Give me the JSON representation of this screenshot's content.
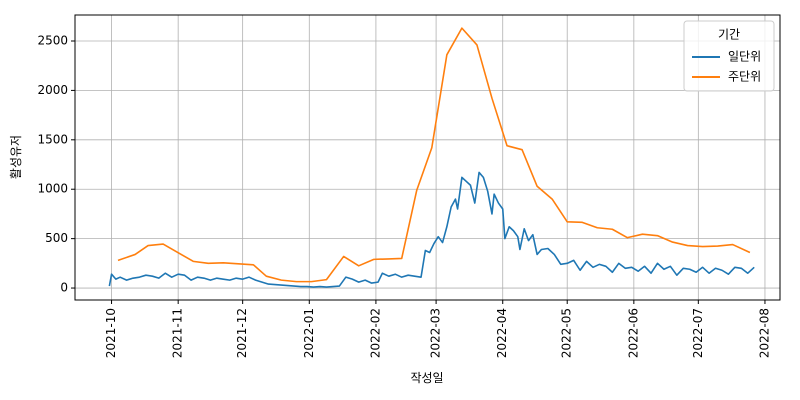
{
  "chart_data": {
    "type": "line",
    "x_label": "작성일",
    "y_label": "활성유저",
    "xlim": [
      "2021-09-14",
      "2022-08-08"
    ],
    "xticks": [
      {
        "value": "2021-10-01",
        "label": "2021-10"
      },
      {
        "value": "2021-11-01",
        "label": "2021-11"
      },
      {
        "value": "2021-12-01",
        "label": "2021-12"
      },
      {
        "value": "2022-01-01",
        "label": "2022-01"
      },
      {
        "value": "2022-02-01",
        "label": "2022-02"
      },
      {
        "value": "2022-03-01",
        "label": "2022-03"
      },
      {
        "value": "2022-04-01",
        "label": "2022-04"
      },
      {
        "value": "2022-05-01",
        "label": "2022-05"
      },
      {
        "value": "2022-06-01",
        "label": "2022-06"
      },
      {
        "value": "2022-07-01",
        "label": "2022-07"
      },
      {
        "value": "2022-08-01",
        "label": "2022-08"
      }
    ],
    "ylim": [
      -121,
      2763
    ],
    "yticks": [
      0,
      500,
      1000,
      1500,
      2000,
      2500
    ],
    "grid": true,
    "legend_title": "기간",
    "legend_position": "upper right",
    "series": [
      {
        "name": "일단위",
        "color": "#1f77b4",
        "x": [
          "2021-09-30",
          "2021-10-01",
          "2021-10-03",
          "2021-10-05",
          "2021-10-08",
          "2021-10-11",
          "2021-10-14",
          "2021-10-17",
          "2021-10-20",
          "2021-10-23",
          "2021-10-26",
          "2021-10-29",
          "2021-11-01",
          "2021-11-04",
          "2021-11-07",
          "2021-11-10",
          "2021-11-13",
          "2021-11-16",
          "2021-11-19",
          "2021-11-22",
          "2021-11-25",
          "2021-11-28",
          "2021-12-01",
          "2021-12-04",
          "2021-12-07",
          "2021-12-10",
          "2021-12-13",
          "2021-12-16",
          "2021-12-19",
          "2021-12-22",
          "2021-12-25",
          "2021-12-28",
          "2021-12-31",
          "2022-01-03",
          "2022-01-06",
          "2022-01-09",
          "2022-01-12",
          "2022-01-15",
          "2022-01-18",
          "2022-01-21",
          "2022-01-24",
          "2022-01-27",
          "2022-01-30",
          "2022-02-02",
          "2022-02-04",
          "2022-02-07",
          "2022-02-10",
          "2022-02-13",
          "2022-02-16",
          "2022-02-19",
          "2022-02-22",
          "2022-02-24",
          "2022-02-26",
          "2022-02-28",
          "2022-03-02",
          "2022-03-04",
          "2022-03-06",
          "2022-03-08",
          "2022-03-10",
          "2022-03-11",
          "2022-03-13",
          "2022-03-15",
          "2022-03-17",
          "2022-03-19",
          "2022-03-21",
          "2022-03-23",
          "2022-03-25",
          "2022-03-27",
          "2022-03-28",
          "2022-03-30",
          "2022-04-01",
          "2022-04-02",
          "2022-04-04",
          "2022-04-06",
          "2022-04-08",
          "2022-04-09",
          "2022-04-11",
          "2022-04-13",
          "2022-04-15",
          "2022-04-17",
          "2022-04-19",
          "2022-04-22",
          "2022-04-25",
          "2022-04-28",
          "2022-05-01",
          "2022-05-04",
          "2022-05-07",
          "2022-05-10",
          "2022-05-13",
          "2022-05-16",
          "2022-05-19",
          "2022-05-22",
          "2022-05-25",
          "2022-05-28",
          "2022-05-31",
          "2022-06-03",
          "2022-06-06",
          "2022-06-09",
          "2022-06-12",
          "2022-06-15",
          "2022-06-18",
          "2022-06-21",
          "2022-06-24",
          "2022-06-27",
          "2022-06-30",
          "2022-07-03",
          "2022-07-06",
          "2022-07-09",
          "2022-07-12",
          "2022-07-15",
          "2022-07-18",
          "2022-07-21",
          "2022-07-24",
          "2022-07-27"
        ],
        "values": [
          20,
          140,
          90,
          110,
          80,
          100,
          110,
          130,
          120,
          100,
          150,
          110,
          140,
          130,
          80,
          110,
          100,
          80,
          100,
          90,
          80,
          100,
          90,
          110,
          80,
          60,
          40,
          35,
          30,
          25,
          20,
          15,
          15,
          10,
          15,
          10,
          15,
          20,
          110,
          90,
          60,
          80,
          50,
          60,
          150,
          120,
          140,
          110,
          130,
          120,
          110,
          380,
          360,
          450,
          520,
          460,
          620,
          820,
          900,
          800,
          1120,
          1080,
          1040,
          860,
          1170,
          1120,
          980,
          750,
          950,
          860,
          800,
          500,
          620,
          580,
          520,
          390,
          600,
          480,
          540,
          340,
          390,
          400,
          340,
          240,
          250,
          280,
          180,
          270,
          210,
          240,
          220,
          160,
          250,
          200,
          210,
          170,
          220,
          150,
          250,
          190,
          220,
          130,
          200,
          190,
          160,
          210,
          150,
          200,
          180,
          140,
          210,
          200,
          150,
          210
        ]
      },
      {
        "name": "주단위",
        "color": "#ff7f0e",
        "x": [
          "2021-10-04",
          "2021-10-12",
          "2021-10-18",
          "2021-10-25",
          "2021-11-08",
          "2021-11-15",
          "2021-11-22",
          "2021-12-06",
          "2021-12-12",
          "2021-12-19",
          "2021-12-26",
          "2022-01-02",
          "2022-01-09",
          "2022-01-17",
          "2022-01-24",
          "2022-01-31",
          "2022-02-07",
          "2022-02-13",
          "2022-02-20",
          "2022-02-27",
          "2022-03-06",
          "2022-03-13",
          "2022-03-20",
          "2022-03-27",
          "2022-04-03",
          "2022-04-10",
          "2022-04-17",
          "2022-04-24",
          "2022-05-01",
          "2022-05-08",
          "2022-05-15",
          "2022-05-22",
          "2022-05-29",
          "2022-06-05",
          "2022-06-12",
          "2022-06-19",
          "2022-06-26",
          "2022-07-03",
          "2022-07-10",
          "2022-07-17",
          "2022-07-25"
        ],
        "values": [
          280,
          340,
          430,
          445,
          270,
          250,
          255,
          235,
          120,
          80,
          65,
          65,
          85,
          320,
          225,
          290,
          295,
          300,
          990,
          1420,
          2360,
          2630,
          2460,
          1920,
          1440,
          1400,
          1030,
          900,
          670,
          665,
          610,
          595,
          510,
          545,
          530,
          465,
          430,
          420,
          425,
          440,
          360
        ]
      }
    ]
  }
}
